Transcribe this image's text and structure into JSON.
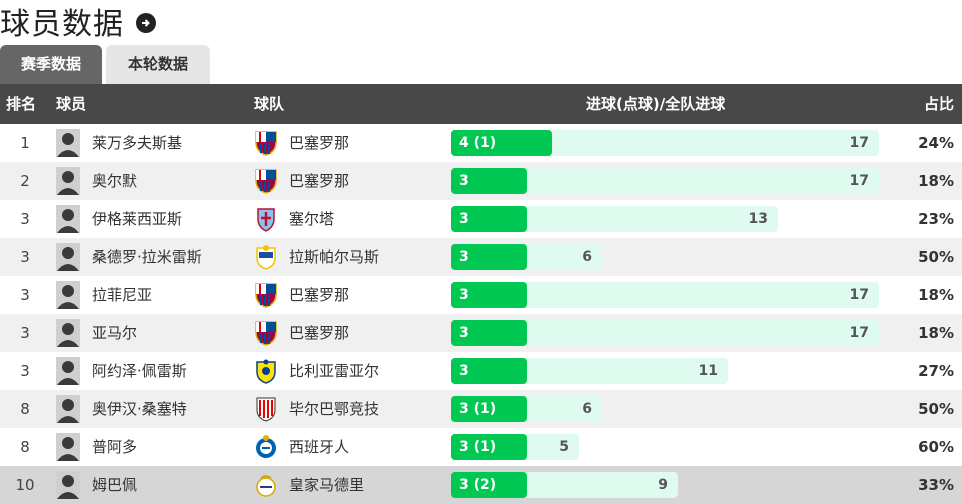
{
  "header": {
    "title": "球员数据",
    "arrow_icon": "arrow-right-circle-icon"
  },
  "tabs": [
    {
      "label": "赛季数据",
      "active": true
    },
    {
      "label": "本轮数据",
      "active": false
    }
  ],
  "table": {
    "columns": {
      "rank": "排名",
      "player": "球员",
      "team": "球队",
      "goals": "进球(点球)/全队进球",
      "pct": "占比"
    },
    "max_total": 17,
    "rows": [
      {
        "rank": "1",
        "player": "莱万多夫斯基",
        "team": "巴塞罗那",
        "crest": "barcelona",
        "goals_label": "4 (1)",
        "goals": 4,
        "total": "17",
        "pct": "24%"
      },
      {
        "rank": "2",
        "player": "奥尔默",
        "team": "巴塞罗那",
        "crest": "barcelona",
        "goals_label": "3",
        "goals": 3,
        "total": "17",
        "pct": "18%"
      },
      {
        "rank": "3",
        "player": "伊格莱西亚斯",
        "team": "塞尔塔",
        "crest": "celta",
        "goals_label": "3",
        "goals": 3,
        "total": "13",
        "pct": "23%"
      },
      {
        "rank": "3",
        "player": "桑德罗·拉米雷斯",
        "team": "拉斯帕尔马斯",
        "crest": "laspalmas",
        "goals_label": "3",
        "goals": 3,
        "total": "6",
        "pct": "50%"
      },
      {
        "rank": "3",
        "player": "拉菲尼亚",
        "team": "巴塞罗那",
        "crest": "barcelona",
        "goals_label": "3",
        "goals": 3,
        "total": "17",
        "pct": "18%"
      },
      {
        "rank": "3",
        "player": "亚马尔",
        "team": "巴塞罗那",
        "crest": "barcelona",
        "goals_label": "3",
        "goals": 3,
        "total": "17",
        "pct": "18%"
      },
      {
        "rank": "3",
        "player": "阿约泽·佩雷斯",
        "team": "比利亚雷亚尔",
        "crest": "villarreal",
        "goals_label": "3",
        "goals": 3,
        "total": "11",
        "pct": "27%"
      },
      {
        "rank": "8",
        "player": "奥伊汉·桑塞特",
        "team": "毕尔巴鄂竞技",
        "crest": "bilbao",
        "goals_label": "3 (1)",
        "goals": 3,
        "total": "6",
        "pct": "50%"
      },
      {
        "rank": "8",
        "player": "普阿多",
        "team": "西班牙人",
        "crest": "espanyol",
        "goals_label": "3 (1)",
        "goals": 3,
        "total": "5",
        "pct": "60%"
      },
      {
        "rank": "10",
        "player": "姆巴佩",
        "team": "皇家马德里",
        "crest": "realmadrid",
        "goals_label": "3 (2)",
        "goals": 3,
        "total": "9",
        "pct": "33%"
      }
    ]
  }
}
